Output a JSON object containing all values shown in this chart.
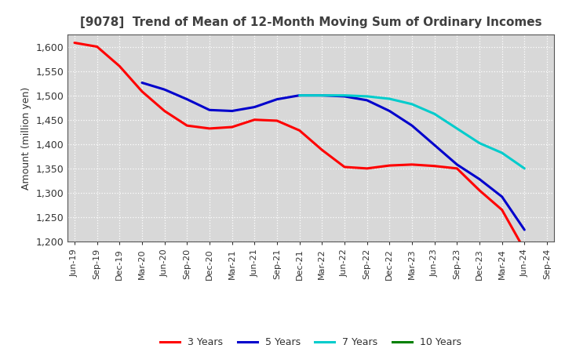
{
  "title": "[9078]  Trend of Mean of 12-Month Moving Sum of Ordinary Incomes",
  "ylabel": "Amount (million yen)",
  "background_color": "#ffffff",
  "plot_bg_color": "#d8d8d8",
  "grid_color": "#ffffff",
  "ylim": [
    1200,
    1625
  ],
  "yticks": [
    1200,
    1250,
    1300,
    1350,
    1400,
    1450,
    1500,
    1550,
    1600
  ],
  "x_labels": [
    "Jun-19",
    "Sep-19",
    "Dec-19",
    "Mar-20",
    "Jun-20",
    "Sep-20",
    "Dec-20",
    "Mar-21",
    "Jun-21",
    "Sep-21",
    "Dec-21",
    "Mar-22",
    "Jun-22",
    "Sep-22",
    "Dec-22",
    "Mar-23",
    "Jun-23",
    "Sep-23",
    "Dec-23",
    "Mar-24",
    "Jun-24",
    "Sep-24"
  ],
  "series": {
    "3 Years": {
      "color": "#ff0000",
      "linewidth": 2.2,
      "data": [
        1608,
        1600,
        1560,
        1508,
        1468,
        1438,
        1432,
        1435,
        1450,
        1448,
        1428,
        1388,
        1353,
        1350,
        1356,
        1358,
        1355,
        1350,
        1305,
        1265,
        1183,
        null
      ]
    },
    "5 Years": {
      "color": "#0000cc",
      "linewidth": 2.2,
      "data": [
        null,
        null,
        null,
        1526,
        1512,
        1492,
        1470,
        1468,
        1476,
        1492,
        1500,
        1500,
        1498,
        1490,
        1468,
        1438,
        1398,
        1358,
        1328,
        1292,
        1224,
        null
      ]
    },
    "7 Years": {
      "color": "#00cccc",
      "linewidth": 2.2,
      "data": [
        null,
        null,
        null,
        null,
        null,
        null,
        null,
        null,
        null,
        null,
        1500,
        1500,
        1500,
        1498,
        1493,
        1482,
        1462,
        1432,
        1402,
        1382,
        1350,
        null
      ]
    },
    "10 Years": {
      "color": "#008000",
      "linewidth": 2.2,
      "data": [
        null,
        null,
        null,
        null,
        null,
        null,
        null,
        null,
        null,
        null,
        null,
        null,
        null,
        null,
        null,
        null,
        null,
        null,
        null,
        null,
        null,
        null
      ]
    }
  },
  "legend_order": [
    "3 Years",
    "5 Years",
    "7 Years",
    "10 Years"
  ],
  "title_color": "#404040",
  "title_fontsize": 11,
  "ylabel_fontsize": 9,
  "tick_fontsize": 9,
  "xtick_fontsize": 8
}
